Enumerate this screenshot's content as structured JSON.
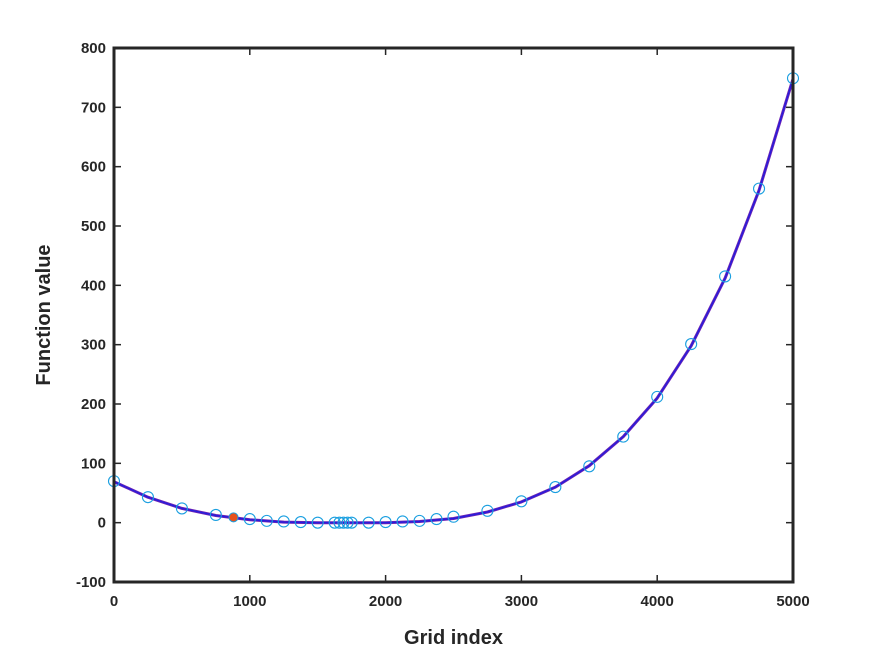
{
  "chart_data": {
    "type": "scatter",
    "title": "",
    "xlabel": "Grid index",
    "ylabel": "Function value",
    "xlim": [
      0,
      5000
    ],
    "ylim": [
      -100,
      800
    ],
    "xticks": [
      0,
      1000,
      2000,
      3000,
      4000,
      5000
    ],
    "yticks": [
      -100,
      0,
      100,
      200,
      300,
      400,
      500,
      600,
      700,
      800
    ],
    "grid": false,
    "legend": "none",
    "colors": {
      "curve": "#6a1fb5",
      "curve_overlay": "#1f1fe0",
      "markers": "#1a9fe0",
      "highlight": "#e8501c",
      "axes": "#262626"
    },
    "series": [
      {
        "kind": "line",
        "x": [
          0,
          250,
          500,
          750,
          1000,
          1250,
          1500,
          1750,
          2000,
          2250,
          2500,
          2750,
          3000,
          3250,
          3500,
          3750,
          4000,
          4250,
          4500,
          4750,
          5000
        ],
        "y": [
          69,
          43,
          24,
          12,
          5,
          1,
          0,
          0,
          0,
          2,
          7,
          18,
          35,
          60,
          96,
          145,
          210,
          298,
          412,
          560,
          748
        ]
      },
      {
        "kind": "markers",
        "x": [
          0,
          250,
          500,
          750,
          1000,
          1125,
          1250,
          1375,
          1500,
          1625,
          1660,
          1690,
          1720,
          1750,
          1875,
          2000,
          2125,
          2250,
          2375,
          2500,
          2750,
          3000,
          3250,
          3500,
          3750,
          4000,
          4250,
          4500,
          4750,
          5000
        ],
        "y": [
          70,
          43,
          24,
          13,
          6,
          3,
          2,
          1,
          0,
          0,
          0,
          0,
          0,
          0,
          0,
          1,
          2,
          3,
          6,
          10,
          20,
          36,
          60,
          95,
          145,
          212,
          301,
          415,
          563,
          749
        ]
      },
      {
        "kind": "highlight",
        "x": [
          880
        ],
        "y": [
          9
        ]
      }
    ]
  }
}
